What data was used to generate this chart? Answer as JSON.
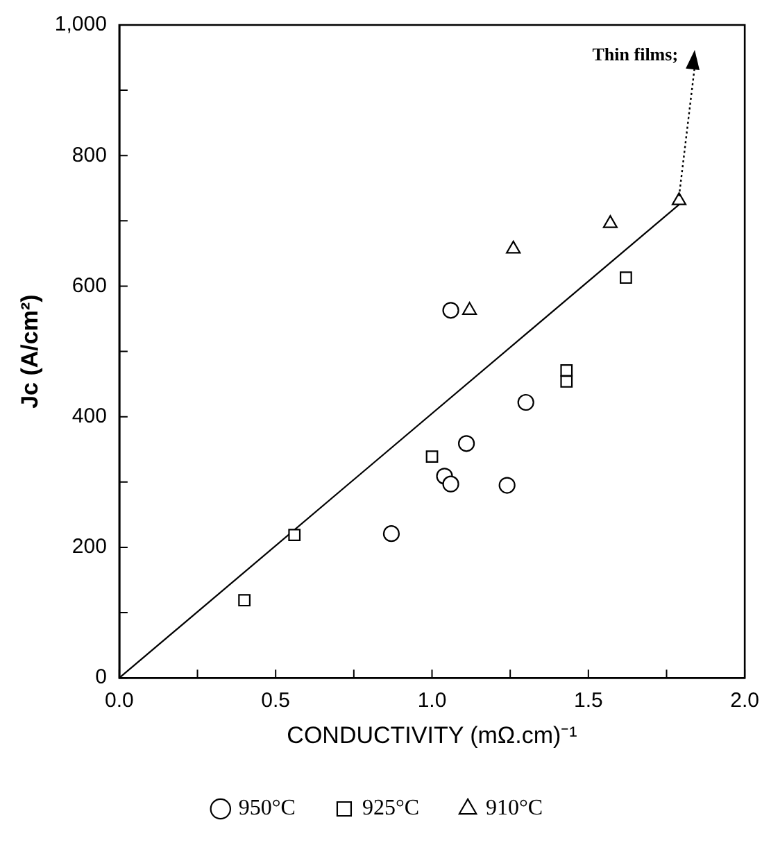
{
  "chart_data": {
    "type": "scatter",
    "xlabel": "CONDUCTIVITY (mΩ.cm)⁻¹",
    "ylabel": "Jc (A/cm²)",
    "xlim": [
      0,
      2
    ],
    "ylim": [
      0,
      1000
    ],
    "xticks": [
      {
        "value": 0,
        "label": "0.0"
      },
      {
        "value": 0.25,
        "label": null
      },
      {
        "value": 0.5,
        "label": "0.5"
      },
      {
        "value": 0.75,
        "label": null
      },
      {
        "value": 1,
        "label": "1.0"
      },
      {
        "value": 1.25,
        "label": null
      },
      {
        "value": 1.5,
        "label": "1.5"
      },
      {
        "value": 1.75,
        "label": null
      },
      {
        "value": 2,
        "label": "2.0"
      }
    ],
    "yticks": [
      0,
      {
        "value": 100,
        "label": null
      },
      200,
      {
        "value": 300,
        "label": null
      },
      400,
      {
        "value": 500,
        "label": null
      },
      600,
      {
        "value": 700,
        "label": null
      },
      800,
      {
        "value": 900,
        "label": null
      },
      {
        "value": 1000,
        "label": "1,000"
      }
    ],
    "grid": false,
    "legend": "bottom",
    "series": [
      {
        "name": "950°C",
        "color": "#000000",
        "marker": "circle",
        "x": [
          0.87,
          1.04,
          1.06,
          1.11,
          1.24,
          1.3,
          1.06
        ],
        "values": [
          221,
          309,
          297,
          359,
          295,
          422,
          563
        ]
      },
      {
        "name": "925°C",
        "color": "#000000",
        "marker": "square",
        "x": [
          0.4,
          0.56,
          1.0,
          1.43,
          1.43,
          1.62
        ],
        "values": [
          119,
          219,
          339,
          471,
          454,
          613
        ]
      },
      {
        "name": "910°C",
        "color": "#000000",
        "marker": "triangle",
        "x": [
          1.12,
          1.26,
          1.57,
          1.79
        ],
        "values": [
          563,
          657,
          696,
          731
        ]
      },
      {
        "type": "line",
        "color": "#000000",
        "marker": "none",
        "line_style": "solid",
        "x": [
          0,
          1.79
        ],
        "values": [
          0,
          725
        ]
      }
    ],
    "annotations": [
      "Thin films;"
    ]
  }
}
